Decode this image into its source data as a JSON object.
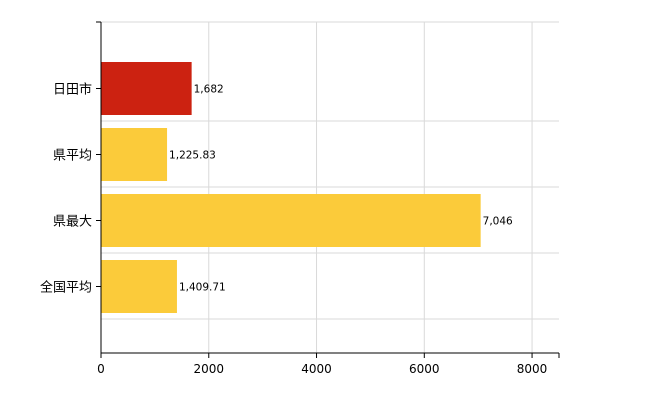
{
  "chart_data": {
    "type": "bar",
    "orientation": "horizontal",
    "categories": [
      "日田市",
      "県平均",
      "県最大",
      "全国平均"
    ],
    "values": [
      1682,
      1225.83,
      7046,
      1409.71
    ],
    "value_labels": [
      "1,682",
      "1,225.83",
      "7,046",
      "1,409.71"
    ],
    "bar_colors": [
      "#cc2211",
      "#fbcb3a",
      "#fbcb3a",
      "#fbcb3a"
    ],
    "x_ticks": [
      "0",
      "2000",
      "4000",
      "6000",
      "8000"
    ],
    "xlim": [
      0,
      8500
    ],
    "grid": true,
    "legend": "none"
  }
}
